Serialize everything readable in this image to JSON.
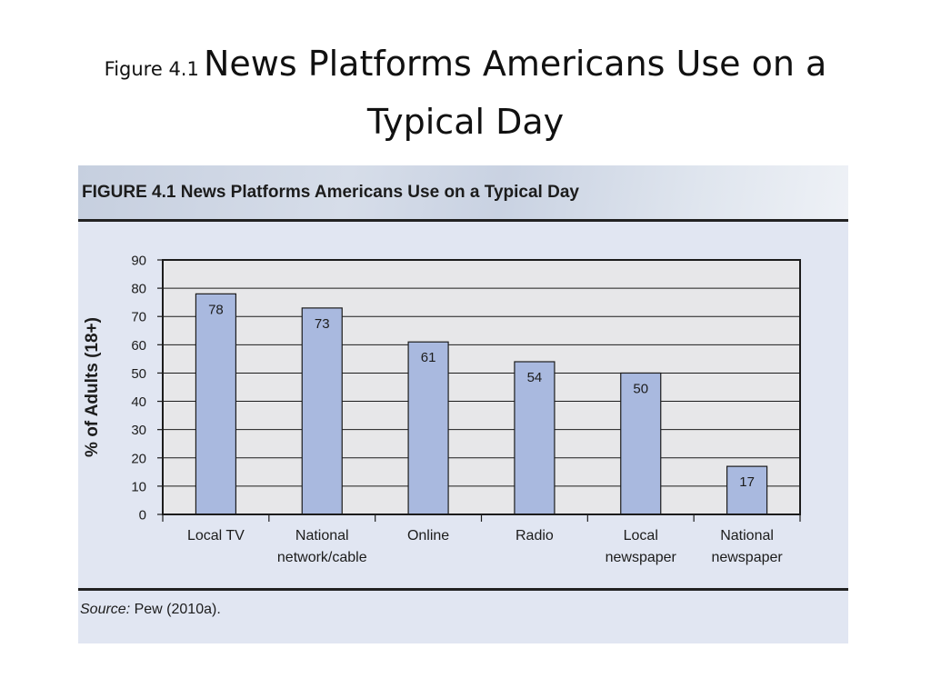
{
  "slide": {
    "title_prefix": "Figure 4.1",
    "title_main": "News Platforms Americans Use on a",
    "title_line2": "Typical Day"
  },
  "figure": {
    "heading": "FIGURE 4.1  News Platforms Americans Use on a Typical Day",
    "source_label": "Source:",
    "source_text": "Pew (2010a)."
  },
  "colors": {
    "bar_fill": "#a9b9df",
    "bar_stroke": "#1c1c1c",
    "plot_bg": "#e7e7e9",
    "panel_bg": "#e1e6f2",
    "grid": "#1c1c1c"
  },
  "chart_data": {
    "type": "bar",
    "title": "News Platforms Americans Use on a Typical Day",
    "ylabel": "% of Adults (18+)",
    "xlabel": "",
    "ylim": [
      0,
      90
    ],
    "yticks": [
      0,
      10,
      20,
      30,
      40,
      50,
      60,
      70,
      80,
      90
    ],
    "grid": true,
    "categories": [
      [
        "Local TV"
      ],
      [
        "National",
        "network/cable"
      ],
      [
        "Online"
      ],
      [
        "Radio"
      ],
      [
        "Local",
        "newspaper"
      ],
      [
        "National",
        "newspaper"
      ]
    ],
    "values": [
      78,
      73,
      61,
      54,
      50,
      17
    ]
  }
}
